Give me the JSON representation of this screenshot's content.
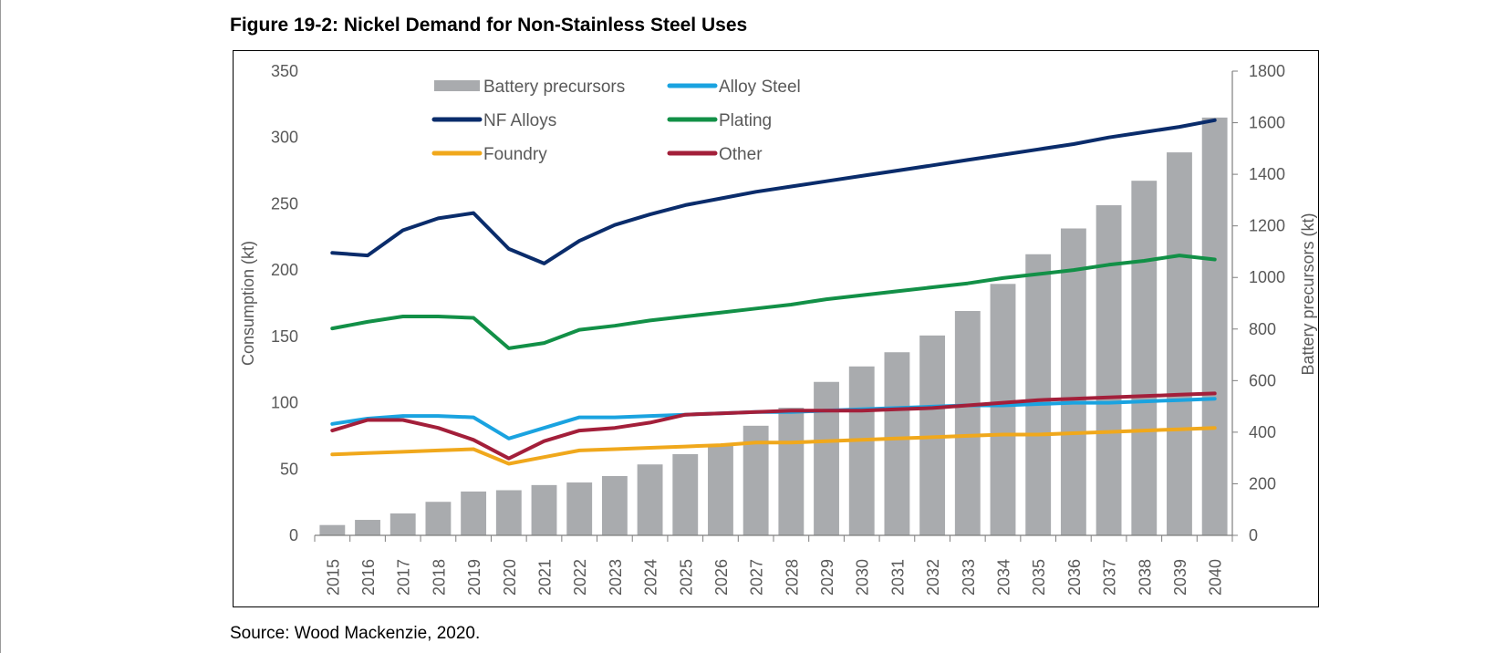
{
  "source": "Source: Wood Mackenzie, 2020.",
  "chart_data": {
    "type": "bar+line",
    "title": "Figure 19-2:  Nickel Demand for Non-Stainless Steel Uses",
    "categories": [
      "2015",
      "2016",
      "2017",
      "2018",
      "2019",
      "2020",
      "2021",
      "2022",
      "2023",
      "2024",
      "2025",
      "2026",
      "2027",
      "2028",
      "2029",
      "2030",
      "2031",
      "2032",
      "2033",
      "2034",
      "2035",
      "2036",
      "2037",
      "2038",
      "2039",
      "2040"
    ],
    "ylabel_left": "Consumption (kt)",
    "ylabel_right": "Battery precursors (kt)",
    "ylim_left": [
      0,
      350
    ],
    "yticks_left": [
      0,
      50,
      100,
      150,
      200,
      250,
      300,
      350
    ],
    "ylim_right": [
      0,
      1800
    ],
    "yticks_right": [
      0,
      200,
      400,
      600,
      800,
      1000,
      1200,
      1400,
      1600,
      1800
    ],
    "grid": false,
    "legend_position": "top-left",
    "bar_series": {
      "name": "Battery precursors",
      "axis": "right",
      "color": "#a9abae",
      "values": [
        40,
        60,
        85,
        130,
        170,
        175,
        195,
        205,
        230,
        275,
        315,
        350,
        425,
        495,
        595,
        655,
        710,
        775,
        870,
        975,
        1090,
        1190,
        1280,
        1375,
        1485,
        1620
      ]
    },
    "series": [
      {
        "name": "Alloy Steel",
        "axis": "left",
        "color": "#1aa3e0",
        "values": [
          84,
          88,
          90,
          90,
          89,
          73,
          81,
          89,
          89,
          90,
          91,
          92,
          93,
          93,
          94,
          95,
          96,
          97,
          98,
          98,
          99,
          100,
          100,
          101,
          102,
          103
        ]
      },
      {
        "name": "NF Alloys",
        "axis": "left",
        "color": "#0a2c6b",
        "values": [
          213,
          211,
          230,
          239,
          243,
          216,
          205,
          222,
          234,
          242,
          249,
          254,
          259,
          263,
          267,
          271,
          275,
          279,
          283,
          287,
          291,
          295,
          300,
          304,
          308,
          313
        ]
      },
      {
        "name": "Plating",
        "axis": "left",
        "color": "#129047",
        "values": [
          156,
          161,
          165,
          165,
          164,
          141,
          145,
          155,
          158,
          162,
          165,
          168,
          171,
          174,
          178,
          181,
          184,
          187,
          190,
          194,
          197,
          200,
          204,
          207,
          211,
          208
        ]
      },
      {
        "name": "Other",
        "axis": "left",
        "color": "#a31f3a",
        "values": [
          79,
          87,
          87,
          81,
          72,
          58,
          71,
          79,
          81,
          85,
          91,
          92,
          93,
          94,
          94,
          94,
          95,
          96,
          98,
          100,
          102,
          103,
          104,
          105,
          106,
          107
        ]
      },
      {
        "name": "Foundry",
        "axis": "left",
        "color": "#f0a81c",
        "values": [
          61,
          62,
          63,
          64,
          65,
          54,
          59,
          64,
          65,
          66,
          67,
          68,
          70,
          70,
          71,
          72,
          73,
          74,
          75,
          76,
          76,
          77,
          78,
          79,
          80,
          81
        ]
      }
    ],
    "legend": [
      [
        "Battery precursors",
        "Alloy Steel"
      ],
      [
        "NF Alloys",
        "Plating"
      ],
      [
        "Foundry",
        "Other"
      ]
    ]
  }
}
